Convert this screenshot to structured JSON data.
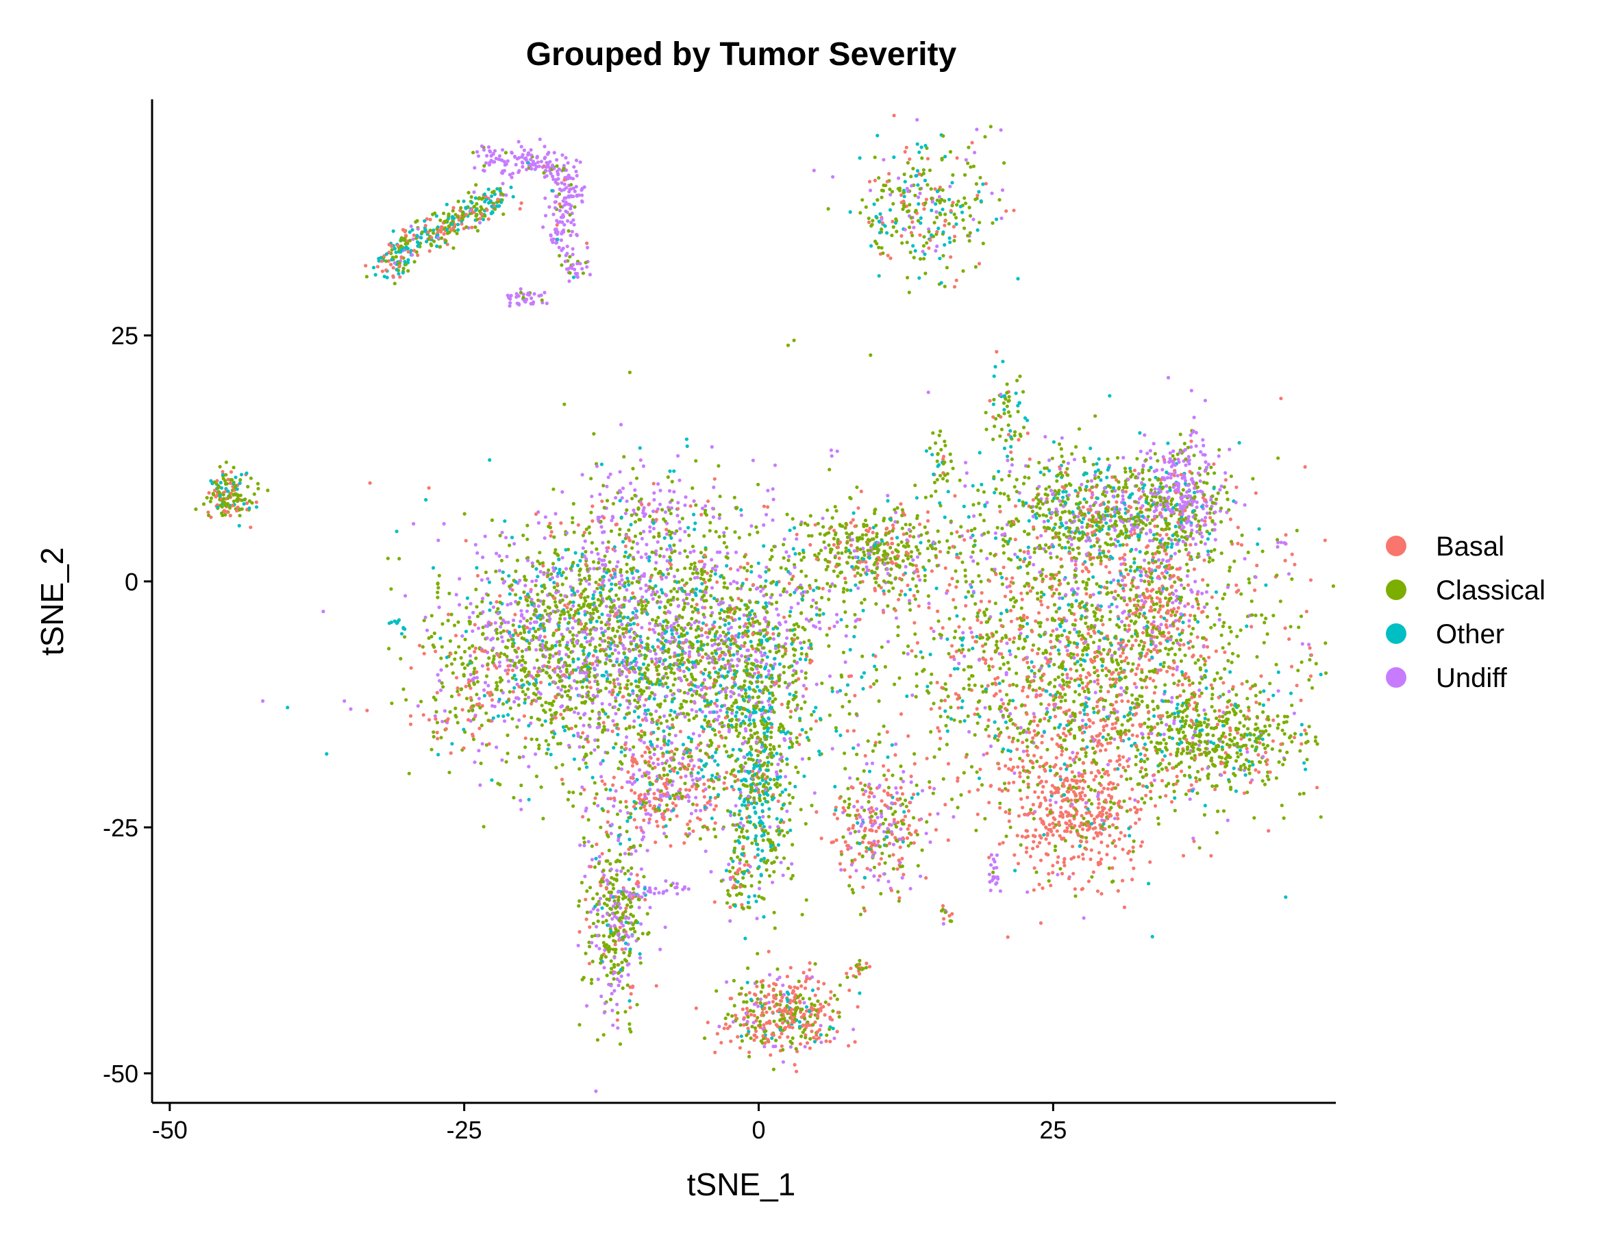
{
  "chart_data": {
    "type": "scatter",
    "title": "Grouped by Tumor Severity",
    "xlabel": "tSNE_1",
    "ylabel": "tSNE_2",
    "xlim": [
      -51.5,
      49
    ],
    "ylim": [
      -53,
      49
    ],
    "xticks": [
      -50,
      -25,
      0,
      25
    ],
    "yticks": [
      -50,
      -25,
      0,
      25
    ],
    "grid": false,
    "legend_position": "right",
    "colors": {
      "Basal": "#F8766D",
      "Classical": "#7CAE00",
      "Other": "#00BFC4",
      "Undiff": "#C77CFF"
    },
    "series": [
      {
        "name": "Basal",
        "color": "#F8766D"
      },
      {
        "name": "Classical",
        "color": "#7CAE00"
      },
      {
        "name": "Other",
        "color": "#00BFC4"
      },
      {
        "name": "Undiff",
        "color": "#C77CFF"
      }
    ],
    "clusters": [
      {
        "cx": -9,
        "cy": -6,
        "sx": 8,
        "sy": 7,
        "n": 2200,
        "mix": [
          0.08,
          0.48,
          0.14,
          0.3
        ]
      },
      {
        "cx": -17,
        "cy": -6,
        "sx": 4,
        "sy": 5,
        "n": 500,
        "mix": [
          0.1,
          0.55,
          0.08,
          0.27
        ]
      },
      {
        "cx": -25,
        "cy": -11,
        "sx": 2.5,
        "sy": 3,
        "n": 150,
        "mix": [
          0.4,
          0.45,
          0.05,
          0.1
        ]
      },
      {
        "cx": -8,
        "cy": -21,
        "sx": 2.5,
        "sy": 2.5,
        "n": 300,
        "mix": [
          0.45,
          0.15,
          0.05,
          0.35
        ]
      },
      {
        "cx": 0,
        "cy": -22,
        "sx": 1.5,
        "sy": 6,
        "n": 400,
        "mix": [
          0.05,
          0.5,
          0.35,
          0.1
        ]
      },
      {
        "cx": -1,
        "cy": -10,
        "sx": 3.5,
        "sy": 6,
        "n": 500,
        "mix": [
          0.1,
          0.5,
          0.25,
          0.15
        ]
      },
      {
        "cx": -12,
        "cy": -34,
        "sx": 1.3,
        "sy": 5,
        "n": 400,
        "mix": [
          0.1,
          0.55,
          0.05,
          0.3
        ]
      },
      {
        "cx": 2,
        "cy": -44,
        "sx": 2.5,
        "sy": 2,
        "n": 400,
        "mix": [
          0.55,
          0.3,
          0.05,
          0.1
        ]
      },
      {
        "cx": 10,
        "cy": -25,
        "sx": 2,
        "sy": 3.5,
        "n": 300,
        "mix": [
          0.4,
          0.3,
          0.05,
          0.25
        ]
      },
      {
        "cx": 10,
        "cy": 3,
        "sx": 3,
        "sy": 2.2,
        "n": 400,
        "mix": [
          0.2,
          0.6,
          0.05,
          0.15
        ]
      },
      {
        "cx": 28,
        "cy": -8,
        "sx": 8,
        "sy": 8,
        "n": 2000,
        "mix": [
          0.28,
          0.52,
          0.1,
          0.1
        ]
      },
      {
        "cx": 27,
        "cy": -23,
        "sx": 3,
        "sy": 4,
        "n": 500,
        "mix": [
          0.85,
          0.1,
          0.02,
          0.03
        ]
      },
      {
        "cx": 29,
        "cy": 7,
        "sx": 5,
        "sy": 3,
        "n": 700,
        "mix": [
          0.08,
          0.52,
          0.2,
          0.2
        ]
      },
      {
        "cx": 36,
        "cy": 9,
        "sx": 1.8,
        "sy": 3,
        "n": 300,
        "mix": [
          0.05,
          0.15,
          0.05,
          0.75
        ]
      },
      {
        "cx": 39,
        "cy": -16,
        "sx": 3.5,
        "sy": 2.5,
        "n": 400,
        "mix": [
          0.1,
          0.75,
          0.1,
          0.05
        ]
      },
      {
        "cx": 34,
        "cy": -2,
        "sx": 1.5,
        "sy": 4,
        "n": 200,
        "mix": [
          0.6,
          0.2,
          0.05,
          0.15
        ]
      },
      {
        "cx": -45,
        "cy": 9,
        "sx": 1,
        "sy": 1.3,
        "n": 150,
        "mix": [
          0.3,
          0.55,
          0.15,
          0.0
        ]
      },
      {
        "cx": -10,
        "cy": 7,
        "sx": 2.5,
        "sy": 2,
        "n": 120,
        "mix": [
          0.1,
          0.3,
          0.05,
          0.55
        ]
      },
      {
        "cx": 14,
        "cy": 38,
        "sx": 3,
        "sy": 3.5,
        "n": 300,
        "mix": [
          0.15,
          0.5,
          0.25,
          0.1
        ]
      },
      {
        "cx": 21,
        "cy": 17,
        "sx": 0.8,
        "sy": 2,
        "n": 60,
        "mix": [
          0.15,
          0.6,
          0.25,
          0.0
        ]
      },
      {
        "cx": 15.5,
        "cy": 12,
        "sx": 0.6,
        "sy": 1.5,
        "n": 40,
        "mix": [
          0.1,
          0.7,
          0.2,
          0.0
        ]
      },
      {
        "cx": -2,
        "cy": -30,
        "sx": 0.6,
        "sy": 2,
        "n": 40,
        "mix": [
          0.3,
          0.4,
          0.1,
          0.2
        ]
      }
    ],
    "paths": [
      {
        "pts": [
          [
            -32,
            31
          ],
          [
            -29,
            35
          ],
          [
            -25,
            37
          ],
          [
            -22,
            39
          ]
        ],
        "n": 350,
        "spread": 0.8,
        "mix": [
          0.25,
          0.4,
          0.3,
          0.05
        ]
      },
      {
        "pts": [
          [
            -24,
            43
          ],
          [
            -20,
            43
          ],
          [
            -17,
            42
          ],
          [
            -16,
            39
          ],
          [
            -17,
            35
          ],
          [
            -15,
            31
          ]
        ],
        "n": 300,
        "spread": 0.7,
        "mix": [
          0.02,
          0.1,
          0.02,
          0.86
        ]
      },
      {
        "pts": [
          [
            -18,
            29
          ],
          [
            -21,
            28.5
          ]
        ],
        "n": 40,
        "spread": 0.4,
        "mix": [
          0.0,
          0.1,
          0.0,
          0.9
        ]
      },
      {
        "pts": [
          [
            -30,
            -5
          ],
          [
            -31,
            -4
          ]
        ],
        "n": 12,
        "spread": 0.2,
        "mix": [
          0.0,
          0.0,
          1.0,
          0.0
        ]
      },
      {
        "pts": [
          [
            -11,
            -32
          ],
          [
            -6,
            -31
          ]
        ],
        "n": 25,
        "spread": 0.3,
        "mix": [
          0.0,
          0.1,
          0.0,
          0.9
        ]
      },
      {
        "pts": [
          [
            9,
            -39
          ],
          [
            8,
            -40
          ]
        ],
        "n": 20,
        "spread": 0.4,
        "mix": [
          0.6,
          0.4,
          0.0,
          0.0
        ]
      },
      {
        "pts": [
          [
            16,
            -33
          ],
          [
            16,
            -35
          ]
        ],
        "n": 12,
        "spread": 0.2,
        "mix": [
          0.3,
          0.3,
          0.0,
          0.4
        ]
      },
      {
        "pts": [
          [
            20,
            -28
          ],
          [
            20,
            -32
          ]
        ],
        "n": 20,
        "spread": 0.3,
        "mix": [
          0.0,
          0.0,
          0.0,
          1.0
        ]
      },
      {
        "pts": [
          [
            45,
            4
          ],
          [
            44,
            3.5
          ]
        ],
        "n": 6,
        "spread": 0.2,
        "mix": [
          0.0,
          0.0,
          0.0,
          1.0
        ]
      }
    ],
    "outliers": [
      {
        "x": -33,
        "y": 10,
        "g": "Basal"
      },
      {
        "x": -28,
        "y": 9.5,
        "g": "Basal"
      },
      {
        "x": 3,
        "y": 24.5,
        "g": "Classical"
      },
      {
        "x": 9.5,
        "y": 23,
        "g": "Classical"
      },
      {
        "x": -16.5,
        "y": 18,
        "g": "Classical"
      },
      {
        "x": -14,
        "y": 15,
        "g": "Classical"
      },
      {
        "x": 2.5,
        "y": 24,
        "g": "Classical"
      }
    ]
  }
}
